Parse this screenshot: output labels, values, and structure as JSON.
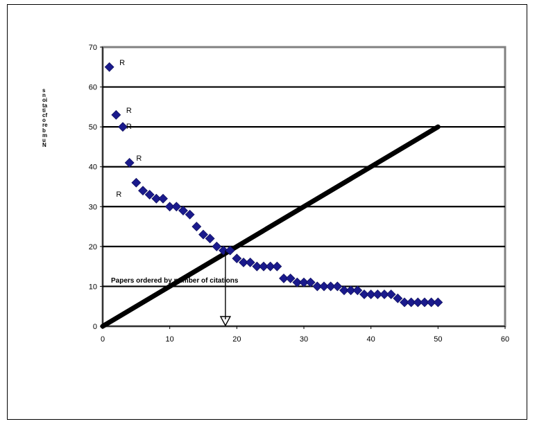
{
  "chart_data": {
    "type": "scatter",
    "title": "",
    "xlabel": "Papers ordered by number of citations",
    "ylabel_rendered": "snoitaticfo rebmuN",
    "xlim": [
      0,
      60
    ],
    "ylim": [
      0,
      70
    ],
    "x_ticks": [
      "0",
      "10",
      "20",
      "30",
      "40",
      "50",
      "60"
    ],
    "y_ticks": [
      "0",
      "10",
      "20",
      "30",
      "40",
      "50",
      "60",
      "70"
    ],
    "grid": "horizontal",
    "legend": "none",
    "colors": {
      "points": "#1a1a8c",
      "line": "#000000",
      "grid": "#000000",
      "plot_border": "#808080"
    },
    "series": [
      {
        "type": "scatter",
        "x": [
          1,
          2,
          3,
          4,
          5,
          6,
          7,
          8,
          9,
          10,
          11,
          12,
          13,
          14,
          15,
          16,
          17,
          18,
          19,
          20,
          21,
          22,
          23,
          24,
          25,
          26,
          27,
          28,
          29,
          30,
          31,
          32,
          33,
          34,
          35,
          36,
          37,
          38,
          39,
          40,
          41,
          42,
          43,
          44,
          45,
          46,
          47,
          48,
          49,
          50
        ],
        "y": [
          65,
          53,
          50,
          41,
          36,
          34,
          33,
          32,
          32,
          30,
          30,
          29,
          28,
          25,
          23,
          22,
          20,
          19,
          19,
          17,
          16,
          16,
          15,
          15,
          15,
          15,
          12,
          12,
          11,
          11,
          11,
          10,
          10,
          10,
          10,
          9,
          9,
          9,
          8,
          8,
          8,
          8,
          8,
          7,
          6,
          6,
          6,
          6,
          6,
          6
        ]
      },
      {
        "type": "line",
        "x": [
          0,
          50
        ],
        "y": [
          0,
          50
        ]
      }
    ],
    "arrow": {
      "x": 18.3,
      "y_from": 19,
      "y_to": 0
    },
    "annotations": [
      {
        "text": "R",
        "x": 2.5,
        "y": 65.5
      },
      {
        "text": "R",
        "x": 3.5,
        "y": 53.5
      },
      {
        "text": "R",
        "x": 3.5,
        "y": 49.5
      },
      {
        "text": "R",
        "x": 5.0,
        "y": 41.5
      },
      {
        "text": "R",
        "x": 2.0,
        "y": 32.5
      }
    ]
  }
}
